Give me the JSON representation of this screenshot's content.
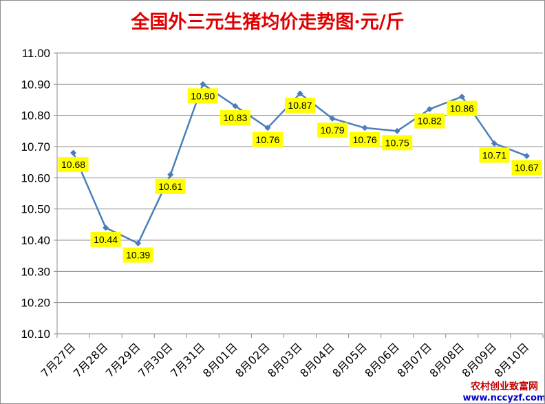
{
  "chart_data": {
    "type": "line",
    "title": "全国外三元生猪均价走势图·元/斤",
    "categories": [
      "7月27日",
      "7月28日",
      "7月29日",
      "7月30日",
      "7月31日",
      "8月01日",
      "8月02日",
      "8月03日",
      "8月04日",
      "8月05日",
      "8月06日",
      "8月07日",
      "8月08日",
      "8月09日",
      "8月10日"
    ],
    "values": [
      10.68,
      10.44,
      10.39,
      10.61,
      10.9,
      10.83,
      10.76,
      10.87,
      10.79,
      10.76,
      10.75,
      10.82,
      10.86,
      10.71,
      10.67
    ],
    "data_labels": [
      "10.68",
      "10.44",
      "10.39",
      "10.61",
      "10.90",
      "10.83",
      "10.76",
      "10.87",
      "10.79",
      "10.76",
      "10.75",
      "10.82",
      "10.86",
      "10.71",
      "10.67"
    ],
    "ylim": [
      10.1,
      11.0
    ],
    "y_ticks": [
      "10.10",
      "10.20",
      "10.30",
      "10.40",
      "10.50",
      "10.60",
      "10.70",
      "10.80",
      "10.90",
      "11.00"
    ],
    "grid": true,
    "legend": "none",
    "colors": {
      "line": "#4a7ebb",
      "title": "#e00000",
      "label_bg": "#ffff00",
      "grid": "#8c8c8c"
    }
  },
  "watermark": {
    "line1": "农村创业致富网",
    "line2": "www.nccyzf.com",
    "color1": "#c00000",
    "color2": "#0000cc"
  }
}
